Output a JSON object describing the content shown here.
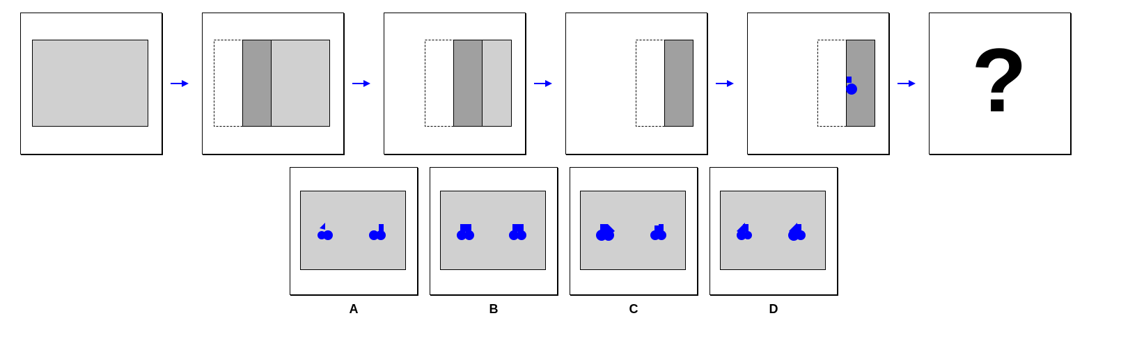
{
  "question": {
    "mark": "?"
  },
  "options": [
    {
      "id": "option-a",
      "label": "A"
    },
    {
      "id": "option-b",
      "label": "B"
    },
    {
      "id": "option-c",
      "label": "C"
    },
    {
      "id": "option-d",
      "label": "D"
    }
  ],
  "colors": {
    "panel_light": "#d0d0d0",
    "panel_dark": "#a0a0a0",
    "shape_blue": "#0000ff",
    "arrow_blue": "#0000ff"
  },
  "icons": {
    "sequence_arrow": "right-arrow-icon",
    "blue_shape": "blue-compound-shape-icon"
  }
}
